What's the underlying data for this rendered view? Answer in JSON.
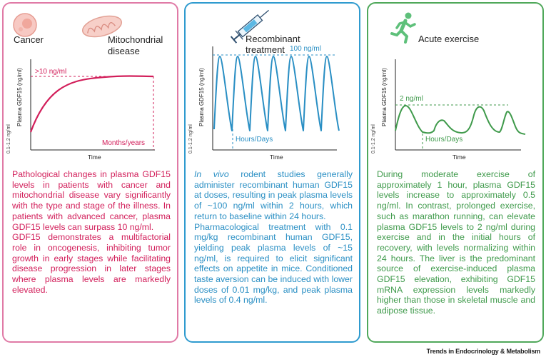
{
  "panels": {
    "cancer": {
      "label_cancer": "Cancer",
      "label_mito": "Mitochondrial disease",
      "y_axis_label": "Plasma GDF15 (ng/ml)",
      "y_min_label": "0.1-1.2 ng/ml",
      "x_axis_label": "Time",
      "peak_label": ">10 ng/ml",
      "timescale_label": "Months/years",
      "text_p1": "Pathological changes in plasma GDF15 levels in patients with cancer and mitochondrial disease vary significantly with the type and stage of the illness. In patients with advanced cancer, plasma GDF15 levels can surpass 10 ng/ml.",
      "text_p2": "GDF15 demonstrates a multifactorial role in oncogenesis, inhibiting tumor growth in early stages while facilitating disease progression in later stages where plasma levels are markedly elevated.",
      "color": "#d21e5a"
    },
    "recombinant": {
      "label": "Recombinant treatment",
      "y_axis_label": "Plasma GDF15 (ng/ml)",
      "y_min_label": "0.1-1.2 ng/ml",
      "x_axis_label": "Time",
      "peak_label": "100 ng/ml",
      "timescale_label": "Hours/Days",
      "text_italic": "In vivo",
      "text_p1_rest": " rodent studies generally administer recombinant human GDF15 at doses, resulting in peak plasma levels of ~100 ng/ml within 2 hours, which return to baseline within 24 hours.",
      "text_p2": "Pharmacological treatment with 0.1 mg/kg recombinant human GDF15, yielding peak plasma levels of ~15 ng/ml, is required to elicit significant effects on appetite in mice. Conditioned taste aversion can be induced with lower doses of 0.01 mg/kg, and peak plasma levels of 0.4 ng/ml.",
      "color": "#2a8fc4"
    },
    "exercise": {
      "label": "Acute exercise",
      "y_axis_label": "Plasma GDF15 (ng/ml)",
      "y_min_label": "0.1-1.2 ng/ml",
      "x_axis_label": "Time",
      "peak_label": "2 ng/ml",
      "timescale_label": "Hours/Days",
      "text_p1": "During moderate exercise of approximately 1 hour, plasma GDF15 levels increase to approximately 0.5 ng/ml. In contrast, prolonged exercise, such as marathon running, can elevate plasma GDF15 levels to 2 ng/ml during exercise and in the initial hours of recovery, with levels normalizing within 24 hours. The liver is the predominant source of exercise-induced plasma GDF15 elevation, exhibiting GDF15 mRNA expression levels markedly higher than those in skeletal muscle and adipose tissue.",
      "color": "#3f9a4b"
    }
  },
  "footer": "Trends in Endocrinology & Metabolism"
}
